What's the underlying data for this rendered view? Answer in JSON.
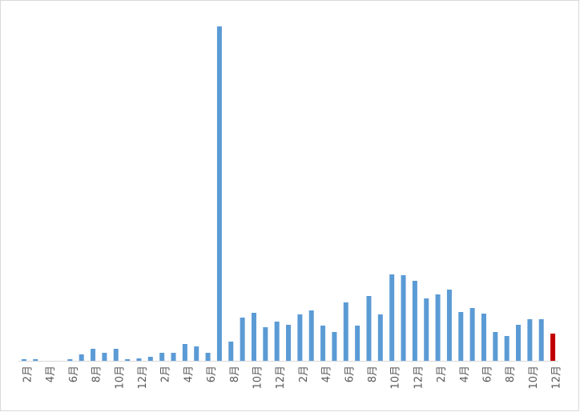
{
  "chart_data": {
    "type": "bar",
    "categories": [
      "2月",
      null,
      "4月",
      null,
      "6月",
      null,
      "8月",
      null,
      "10月",
      null,
      "12月",
      null,
      "2月",
      null,
      "4月",
      null,
      "6月",
      null,
      "8月",
      null,
      "10月",
      null,
      "12月",
      null,
      "2月",
      null,
      "4月",
      null,
      "6月",
      null,
      "8月",
      null,
      "10月",
      null,
      "12月",
      null,
      "2月",
      null,
      "4月",
      null,
      "6月",
      null,
      "8月",
      null,
      "10月",
      null,
      "12月"
    ],
    "values": [
      2,
      2,
      0,
      0,
      2,
      8,
      15,
      10,
      15,
      2,
      3,
      5,
      10,
      10,
      21,
      18,
      10,
      418,
      24,
      54,
      60,
      42,
      49,
      45,
      58,
      63,
      44,
      36,
      73,
      44,
      81,
      58,
      108,
      107,
      100,
      78,
      83,
      89,
      61,
      66,
      59,
      36,
      31,
      45,
      52,
      52,
      34
    ],
    "colors": [
      "#5b9bd5",
      "#5b9bd5",
      "#5b9bd5",
      "#5b9bd5",
      "#5b9bd5",
      "#5b9bd5",
      "#5b9bd5",
      "#5b9bd5",
      "#5b9bd5",
      "#5b9bd5",
      "#5b9bd5",
      "#5b9bd5",
      "#5b9bd5",
      "#5b9bd5",
      "#5b9bd5",
      "#5b9bd5",
      "#5b9bd5",
      "#5b9bd5",
      "#5b9bd5",
      "#5b9bd5",
      "#5b9bd5",
      "#5b9bd5",
      "#5b9bd5",
      "#5b9bd5",
      "#5b9bd5",
      "#5b9bd5",
      "#5b9bd5",
      "#5b9bd5",
      "#5b9bd5",
      "#5b9bd5",
      "#5b9bd5",
      "#5b9bd5",
      "#5b9bd5",
      "#5b9bd5",
      "#5b9bd5",
      "#5b9bd5",
      "#5b9bd5",
      "#5b9bd5",
      "#5b9bd5",
      "#5b9bd5",
      "#5b9bd5",
      "#5b9bd5",
      "#5b9bd5",
      "#5b9bd5",
      "#5b9bd5",
      "#5b9bd5",
      "#c00000"
    ],
    "ylim": [
      0,
      418
    ]
  }
}
